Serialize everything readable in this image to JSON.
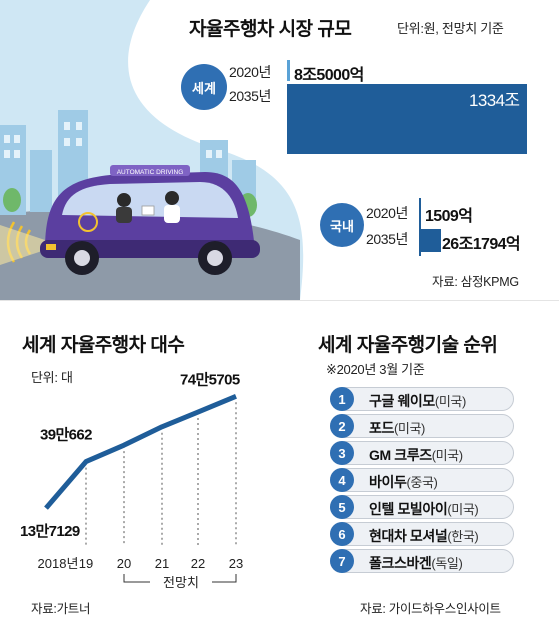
{
  "top": {
    "title": "자율주행차 시장 규모",
    "unit": "단위:원, 전망치 기준",
    "world_badge": "세계",
    "korea_badge": "국내",
    "source": "자료: 삼정KPMG",
    "car_sign": "AUTOMATIC DRIVING"
  },
  "left": {
    "title": "세계 자율주행차 대수",
    "unit": "단위: 대",
    "forecast_label": "전망치",
    "source": "자료:가트너"
  },
  "right": {
    "title": "세계 자율주행기술 순위",
    "note": "※2020년 3월 기준",
    "source": "자료: 가이드하우스인사이트",
    "ranks": [
      {
        "num": "1",
        "name": "구글 웨이모",
        "country": "(미국)"
      },
      {
        "num": "2",
        "name": "포드",
        "country": "(미국)"
      },
      {
        "num": "3",
        "name": "GM 크루즈",
        "country": "(미국)"
      },
      {
        "num": "4",
        "name": "바이두",
        "country": "(중국)"
      },
      {
        "num": "5",
        "name": "인텔 모빌아이",
        "country": "(미국)"
      },
      {
        "num": "6",
        "name": "현대차 모셔널",
        "country": "(한국)"
      },
      {
        "num": "7",
        "name": "폴크스바겐",
        "country": "(독일)"
      }
    ]
  },
  "colors": {
    "accent": "#2f6fb3",
    "bar_dark": "#1f5d99",
    "bar_light": "#5aa2d6",
    "sky": "#cfe7f4",
    "car_body": "#5b3fa0"
  },
  "chart_data": [
    {
      "type": "bar",
      "series_label": "세계",
      "categories": [
        "2020년",
        "2035년"
      ],
      "value_labels": [
        "8조5000억",
        "1334조"
      ],
      "values": [
        8.5,
        1334
      ],
      "unit": "조원"
    },
    {
      "type": "bar",
      "series_label": "국내",
      "categories": [
        "2020년",
        "2035년"
      ],
      "value_labels": [
        "1509억",
        "26조1794억"
      ],
      "values": [
        0.1509,
        26.1794
      ],
      "unit": "조원"
    },
    {
      "type": "line",
      "title": "세계 자율주행차 대수",
      "x_labels": [
        "2018년",
        "19",
        "20",
        "21",
        "22",
        "23"
      ],
      "values": [
        137129,
        390662,
        480000,
        580000,
        660000,
        745705
      ],
      "point_labels": [
        "13만7129",
        "39만662",
        "",
        "",
        "",
        "74만5705"
      ],
      "forecast_from_index": 2,
      "ylabel": "대"
    }
  ]
}
